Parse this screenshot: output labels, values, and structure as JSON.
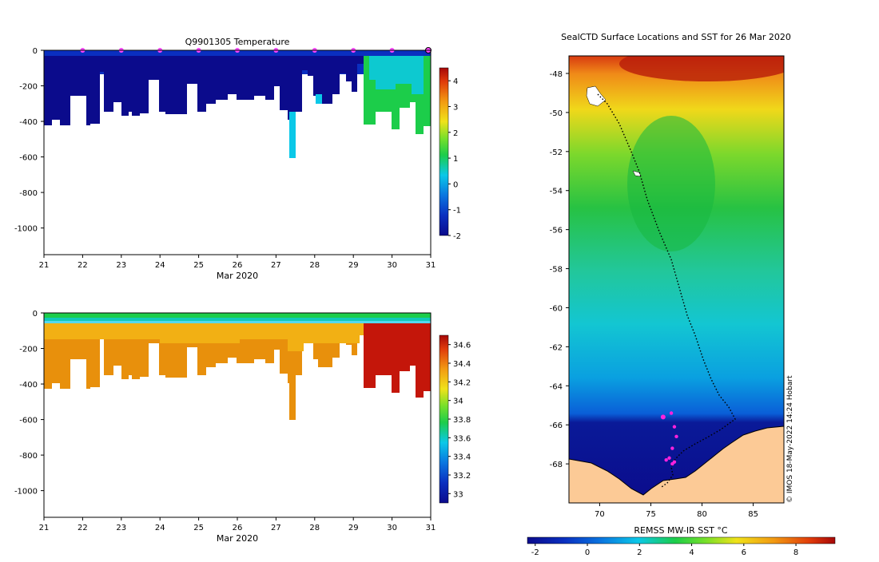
{
  "chart_data": [
    {
      "type": "heatmap",
      "title": "Q9901305  Temperature",
      "xlabel": "Mar 2020",
      "ylabel": "",
      "x_ticks": [
        "21",
        "22",
        "23",
        "24",
        "25",
        "26",
        "27",
        "28",
        "29",
        "30",
        "31"
      ],
      "x_range": [
        21,
        31
      ],
      "y_ticks": [
        0,
        -200,
        -400,
        -600,
        -800,
        -1000
      ],
      "y_range": [
        -1150,
        0
      ],
      "surface_markers_days": [
        22,
        23,
        24,
        25,
        26,
        27,
        28,
        29,
        30
      ],
      "colorbar": {
        "ticks": [
          4,
          3,
          2,
          1,
          0,
          -1,
          -2
        ],
        "range": [
          -2,
          4.5
        ]
      }
    },
    {
      "type": "heatmap",
      "title": "",
      "xlabel": "Mar 2020",
      "ylabel": "",
      "x_ticks": [
        "21",
        "22",
        "23",
        "24",
        "25",
        "26",
        "27",
        "28",
        "29",
        "30",
        "31"
      ],
      "x_range": [
        21,
        31
      ],
      "y_ticks": [
        0,
        -200,
        -400,
        -600,
        -800,
        -1000
      ],
      "y_range": [
        -1150,
        0
      ],
      "colorbar": {
        "ticks": [
          34.6,
          34.4,
          34.2,
          34,
          33.8,
          33.6,
          33.4,
          33.2,
          33
        ],
        "range": [
          32.9,
          34.7
        ]
      }
    },
    {
      "type": "heatmap",
      "title": "SealCTD Surface Locations and SST for 26 Mar 2020",
      "xlabel": "",
      "ylabel": "",
      "x_ticks": [
        70,
        75,
        80,
        85
      ],
      "x_range": [
        67,
        88
      ],
      "y_ticks": [
        -48,
        -50,
        -52,
        -54,
        -56,
        -58,
        -60,
        -62,
        -64,
        -66,
        -68
      ],
      "y_range": [
        -70,
        -47.1
      ],
      "colorbar": {
        "label": "REMSS MW-IR SST °C",
        "ticks": [
          -2,
          0,
          2,
          4,
          6,
          8
        ],
        "range": [
          -2.3,
          9.5
        ]
      },
      "credit": "© IMOS 18-May-2022 14:24 Hobart"
    }
  ]
}
